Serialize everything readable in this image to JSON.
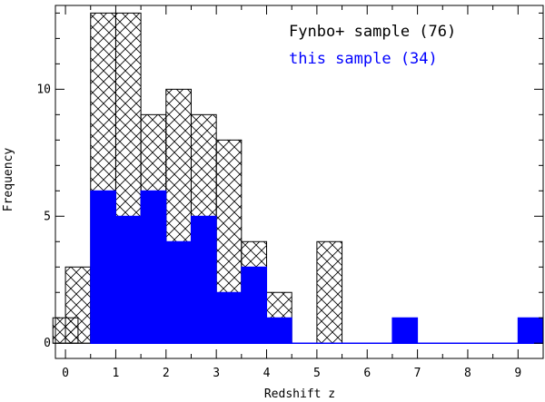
{
  "chart_data": {
    "type": "bar",
    "xlabel": "Redshift z",
    "ylabel": "Frequency",
    "xlim": [
      -0.2,
      9.5
    ],
    "ylim": [
      -0.6,
      13.3
    ],
    "x_ticks": [
      "0",
      "1",
      "2",
      "3",
      "4",
      "5",
      "6",
      "7",
      "8",
      "9"
    ],
    "y_ticks": [
      "0",
      "5",
      "10"
    ],
    "bin_width": 0.5,
    "series": [
      {
        "name": "Fynbo+ sample (76)",
        "style": "crosshatch",
        "color": "#000000",
        "bins": [
          {
            "x0": -0.25,
            "count": 1
          },
          {
            "x0": 0.0,
            "count": 3
          },
          {
            "x0": 0.5,
            "count": 13
          },
          {
            "x0": 1.0,
            "count": 13
          },
          {
            "x0": 1.5,
            "count": 9
          },
          {
            "x0": 2.0,
            "count": 10
          },
          {
            "x0": 2.5,
            "count": 9
          },
          {
            "x0": 3.0,
            "count": 8
          },
          {
            "x0": 3.5,
            "count": 4
          },
          {
            "x0": 4.0,
            "count": 2
          },
          {
            "x0": 5.0,
            "count": 4
          }
        ]
      },
      {
        "name": "this sample (34)",
        "style": "solid",
        "color": "#0000ff",
        "bins": [
          {
            "x0": 0.5,
            "count": 6
          },
          {
            "x0": 1.0,
            "count": 5
          },
          {
            "x0": 1.5,
            "count": 6
          },
          {
            "x0": 2.0,
            "count": 4
          },
          {
            "x0": 2.5,
            "count": 5
          },
          {
            "x0": 3.0,
            "count": 2
          },
          {
            "x0": 3.5,
            "count": 3
          },
          {
            "x0": 4.0,
            "count": 1
          },
          {
            "x0": 6.5,
            "count": 1
          },
          {
            "x0": 9.0,
            "count": 1
          }
        ]
      }
    ]
  }
}
